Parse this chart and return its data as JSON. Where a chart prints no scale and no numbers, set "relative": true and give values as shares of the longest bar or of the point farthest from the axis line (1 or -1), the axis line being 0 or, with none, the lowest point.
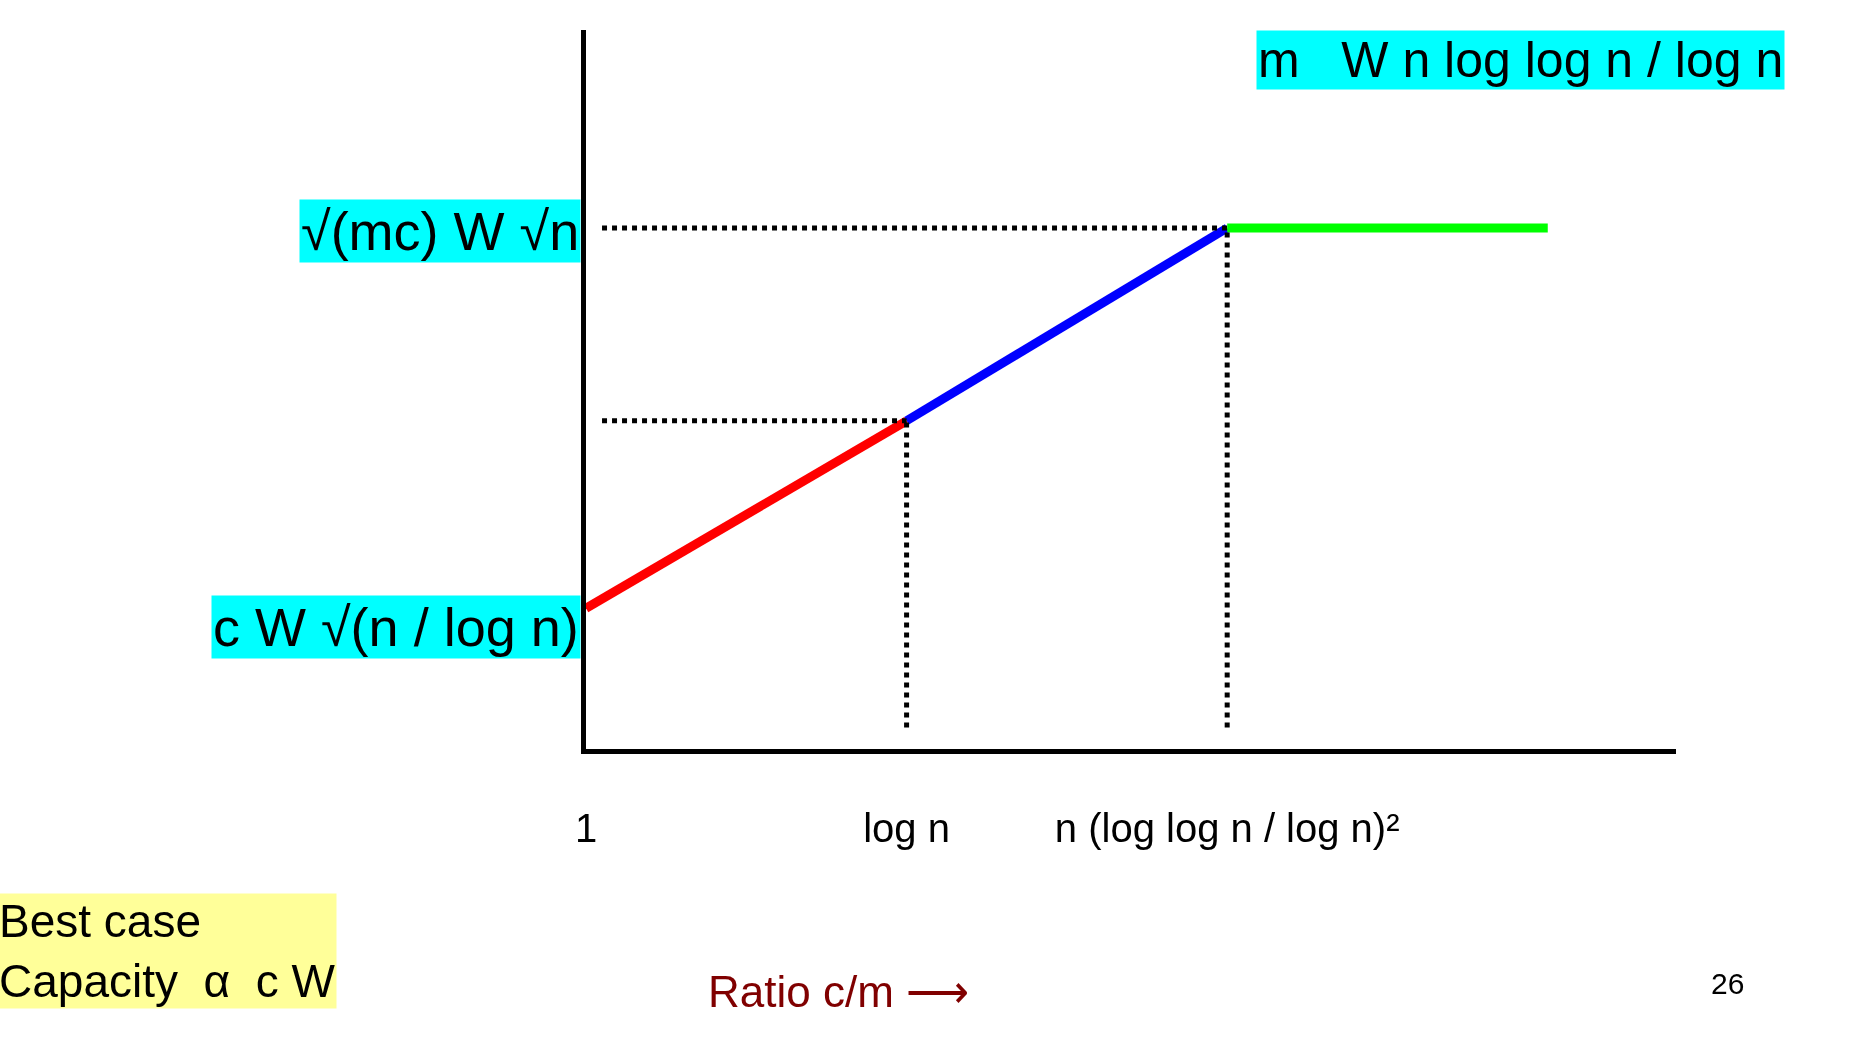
{
  "chart_data": {
    "type": "line",
    "relative": true,
    "categories": [
      "1",
      "log n",
      "n (log log n / log n)²",
      null
    ],
    "series": [
      {
        "color": "#ff0000",
        "values": [
          0.27,
          0.63,
          null,
          null
        ]
      },
      {
        "color": "#0000ff",
        "values": [
          null,
          0.63,
          1,
          null
        ]
      },
      {
        "color": "#00ff00",
        "values": [
          null,
          null,
          1,
          1
        ]
      }
    ],
    "ref_lines": [
      {
        "axis": "x",
        "value": "log n",
        "line_style": "dotted",
        "color": "#000000"
      },
      {
        "axis": "x",
        "value": "n (log log n / log n)²",
        "line_style": "dotted",
        "color": "#000000"
      },
      {
        "axis": "y",
        "value": 0.63,
        "line_style": "dotted",
        "color": "#000000"
      },
      {
        "axis": "y",
        "value": 1,
        "line_style": "dotted",
        "color": "#000000"
      }
    ],
    "annotations": [
      "c W √(n / log n)",
      "√(mc) W √n",
      "m   W n log log n / log n",
      "Best case\nCapacity  α  c W",
      "Ratio c/m ⟶",
      "26"
    ],
    "marker": "none",
    "line_style": "solid"
  }
}
